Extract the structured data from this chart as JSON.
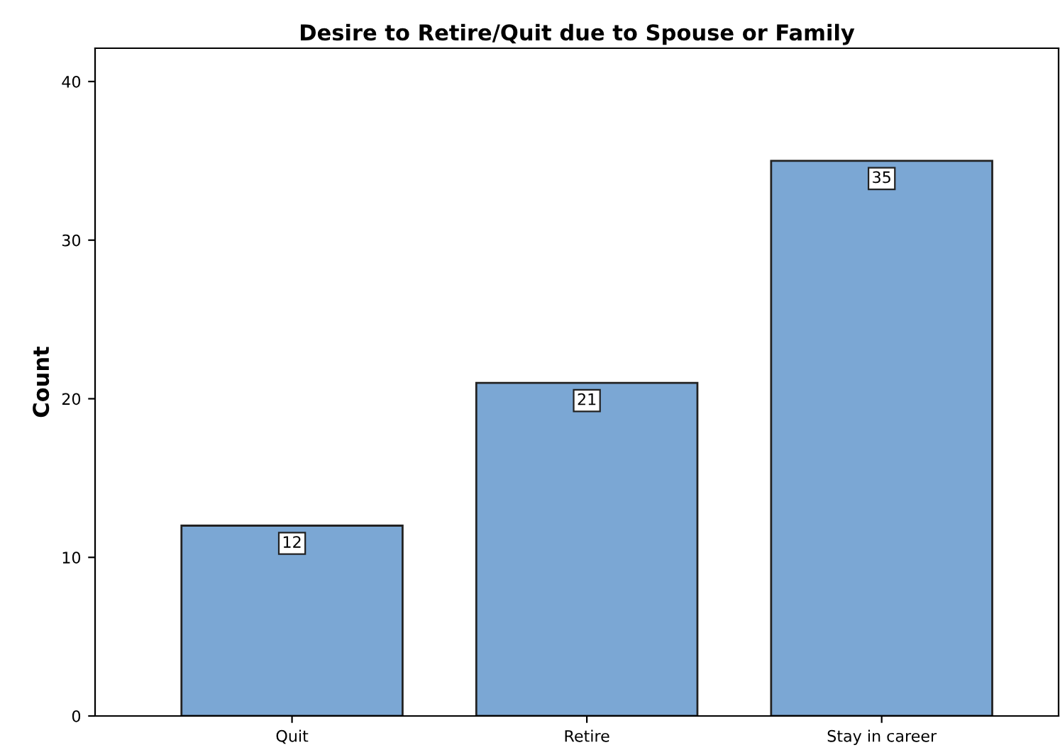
{
  "chart_data": {
    "type": "bar",
    "title": "Desire to Retire/Quit due to Spouse or Family",
    "ylabel": "Count",
    "categories": [
      "Quit",
      "Retire",
      "Stay in career"
    ],
    "values": [
      12,
      21,
      35
    ],
    "color": "#7ba7d4",
    "ylim": [
      0,
      42.1
    ],
    "yticks": [
      0,
      10,
      20,
      30,
      40
    ],
    "grid": false,
    "data_labels": true
  }
}
